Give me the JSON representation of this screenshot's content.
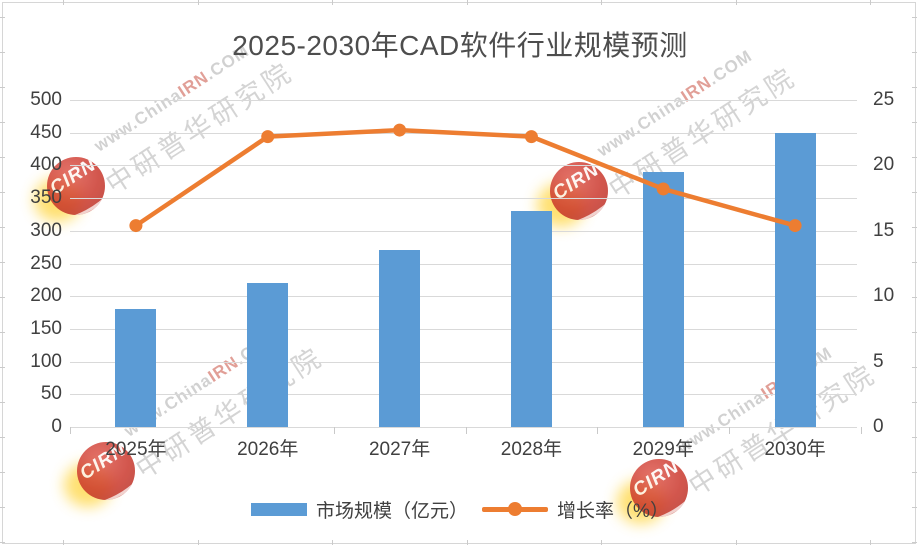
{
  "chart_data": {
    "type": "combo",
    "title": "2025-2030年CAD软件行业规模预测",
    "categories": [
      "2025年",
      "2026年",
      "2027年",
      "2028年",
      "2029年",
      "2030年"
    ],
    "series": [
      {
        "name": "市场规模（亿元）",
        "type": "bar",
        "axis": "left",
        "color": "#5B9BD5",
        "values": [
          180,
          220,
          270,
          330,
          390,
          450
        ]
      },
      {
        "name": "增长率（%）",
        "type": "line",
        "axis": "right",
        "color": "#ED7D31",
        "values": [
          15.4,
          22.2,
          22.7,
          22.2,
          18.2,
          15.4
        ]
      }
    ],
    "left_axis": {
      "min": 0,
      "max": 500,
      "step": 50,
      "labels": [
        "0",
        "50",
        "100",
        "150",
        "200",
        "250",
        "300",
        "350",
        "400",
        "450",
        "500"
      ]
    },
    "right_axis": {
      "min": 0,
      "max": 25,
      "step": 5,
      "labels": [
        "0",
        "5",
        "10",
        "15",
        "20",
        "25"
      ]
    },
    "grid": true,
    "legend_position": "bottom"
  },
  "watermark": {
    "url_prefix": "www.China",
    "url_highlight": "IRN",
    "url_suffix": ".COM",
    "cn_text": "中研普华研究院",
    "logo_text": "CIRN"
  },
  "colors": {
    "bar": "#5B9BD5",
    "line": "#ED7D31",
    "grid": "#D9D9D9",
    "axis_text": "#404040",
    "title_text": "#4D4D4D",
    "wm_yellow": "#FFD84D"
  }
}
